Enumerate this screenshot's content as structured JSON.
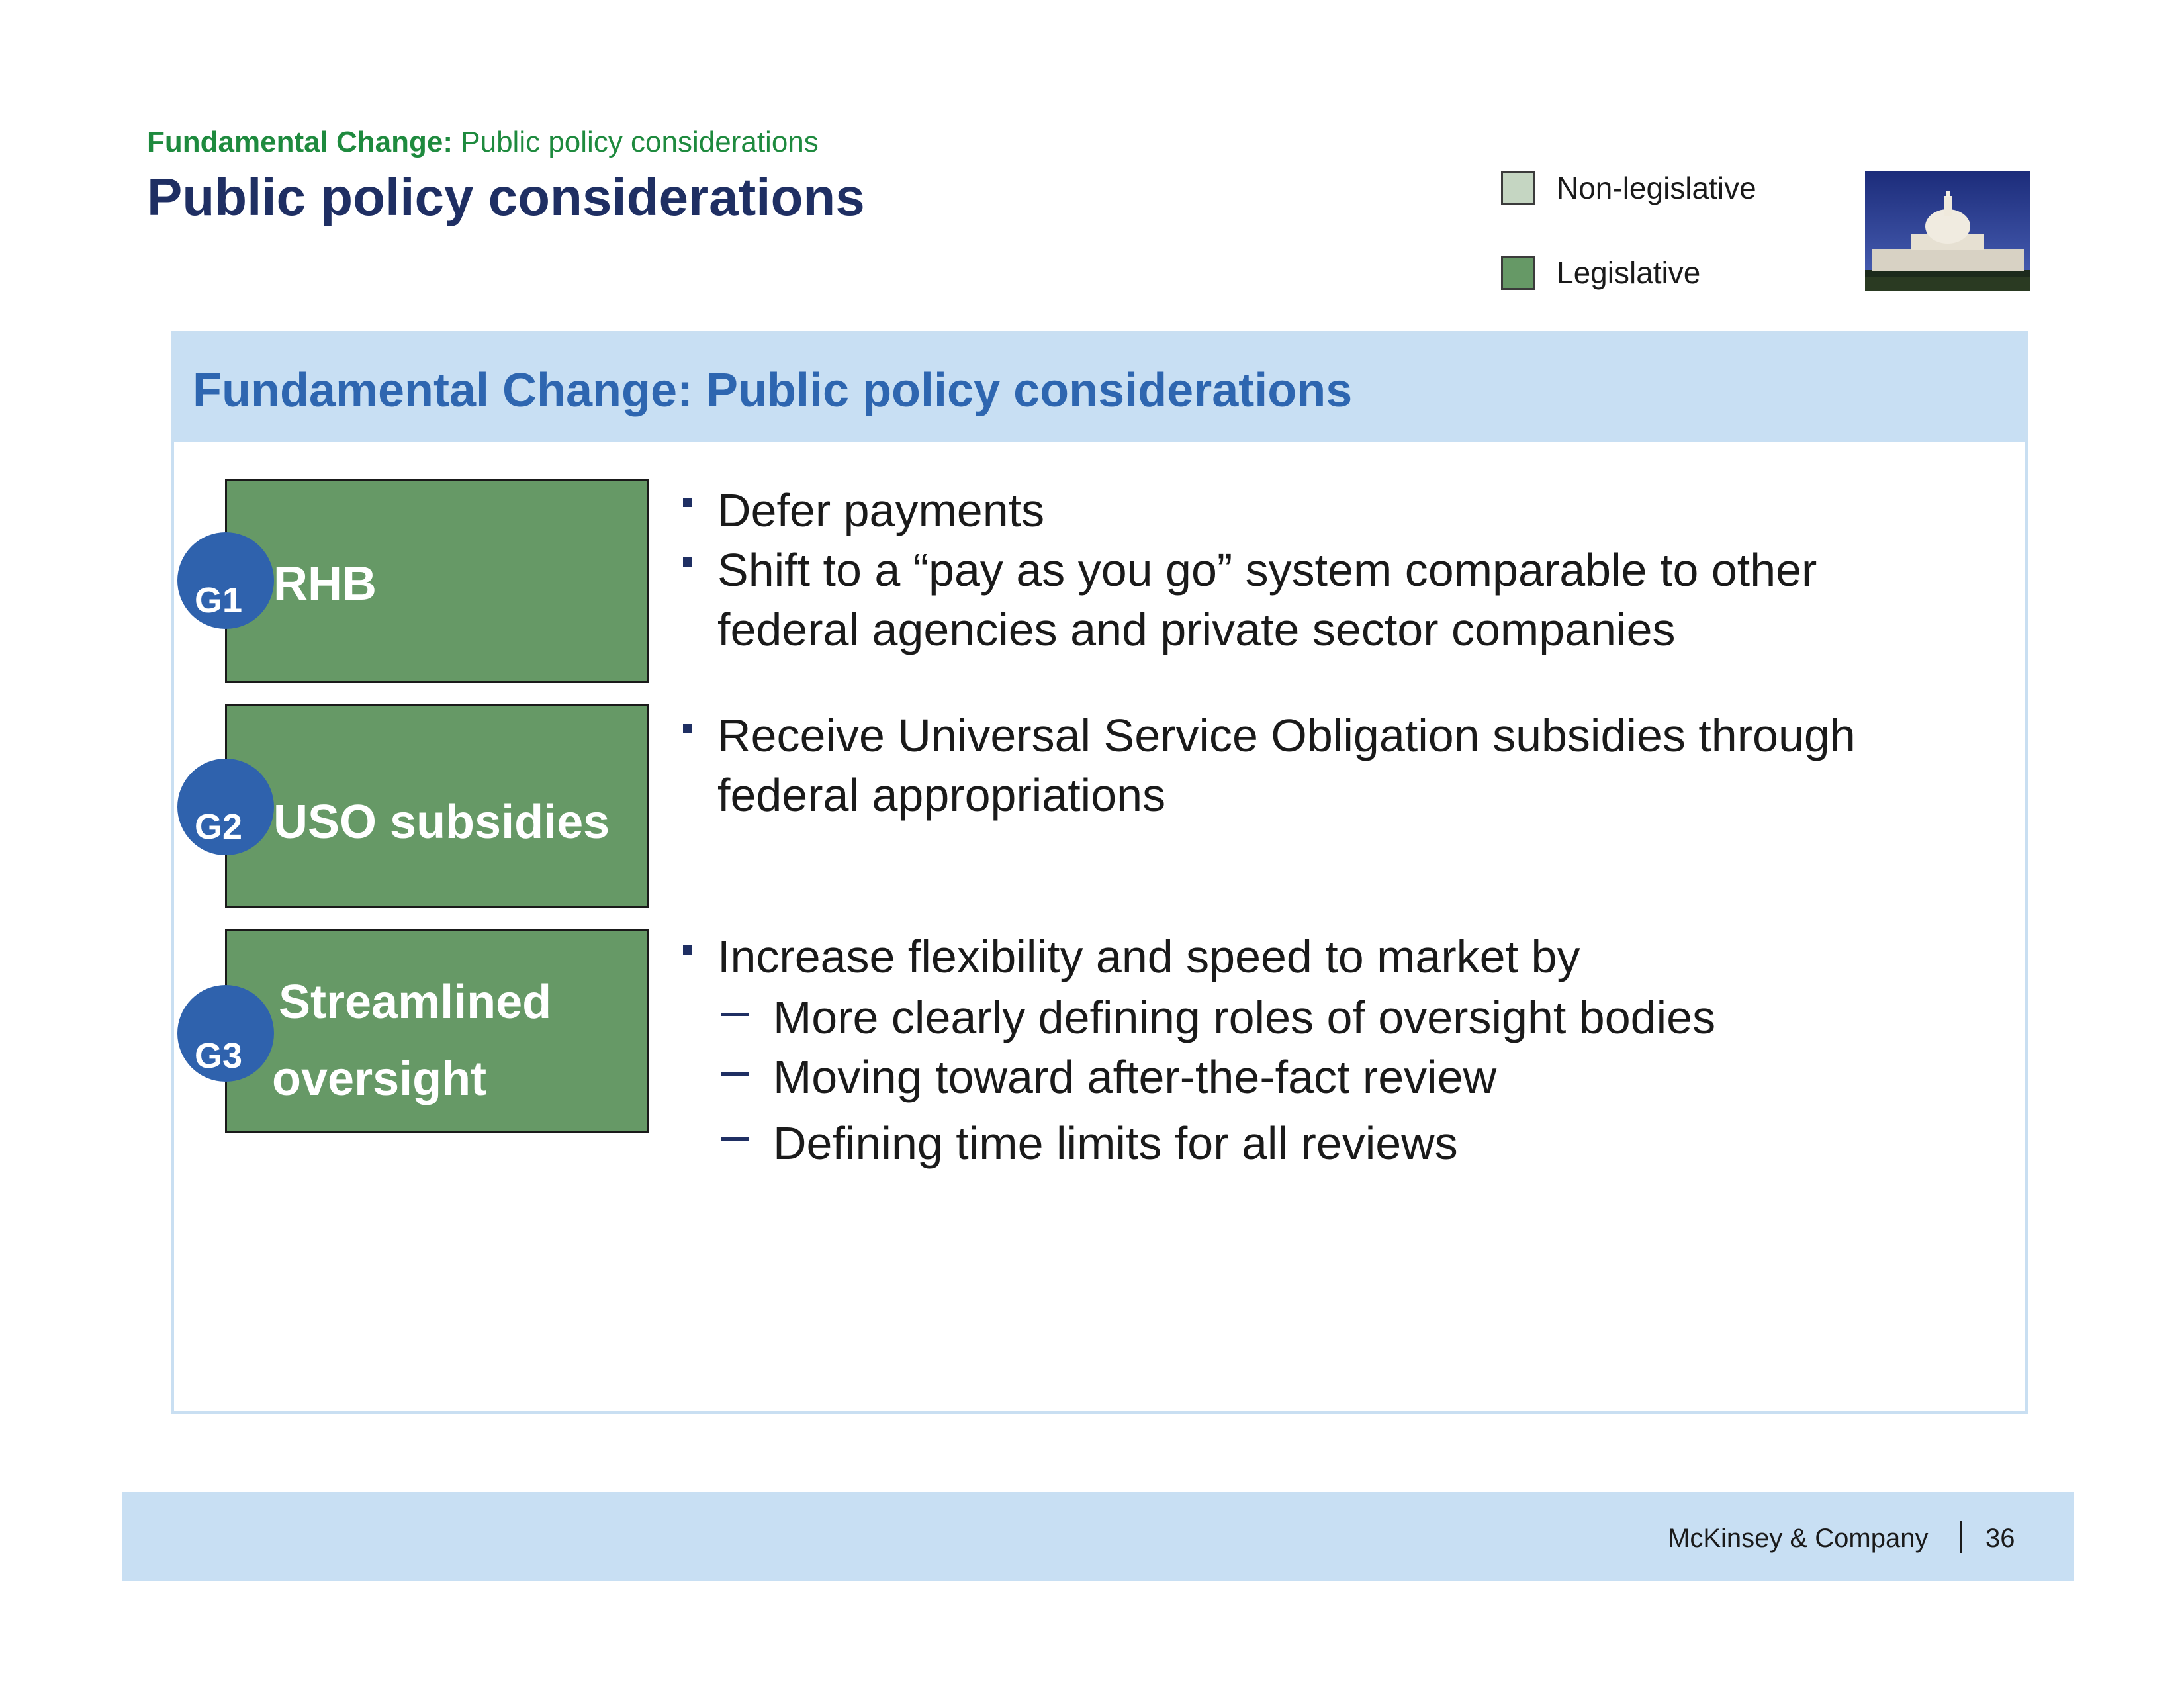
{
  "header": {
    "tracker_bold": "Fundamental Change:",
    "tracker_rest": " Public policy considerations",
    "title": "Public policy considerations"
  },
  "legend": {
    "items": [
      {
        "label": "Non-legislative",
        "color": "#c5d6c2"
      },
      {
        "label": "Legislative",
        "color": "#669966"
      }
    ]
  },
  "image": {
    "name": "capitol-photo"
  },
  "panel": {
    "title": "Fundamental Change: Public policy considerations",
    "groups": [
      {
        "id": "G1",
        "label": "RHB",
        "lines": [
          "Defer payments",
          "Shift to a “pay as you go” system comparable to other",
          "federal agencies and private sector companies"
        ]
      },
      {
        "id": "G2",
        "label": "USO subsidies",
        "lines": [
          "Receive Universal Service Obligation subsidies through",
          "federal appropriations"
        ]
      },
      {
        "id": "G3",
        "label_line1": "Streamlined",
        "label_line2": "oversight",
        "lines": [
          "Increase flexibility and speed to market by"
        ],
        "sub_lines": [
          "More clearly defining roles of oversight bodies",
          "Moving toward after-the-fact review",
          "Defining time limits for all reviews"
        ]
      }
    ]
  },
  "footer": {
    "company": "McKinsey & Company",
    "page": "36"
  },
  "colors": {
    "legislative": "#669966",
    "non_legislative": "#c5d6c2",
    "header_band": "#c8dff3",
    "title_navy": "#1f2f63",
    "tracker_green": "#1e8a3e",
    "badge_blue": "#2f62ad"
  }
}
